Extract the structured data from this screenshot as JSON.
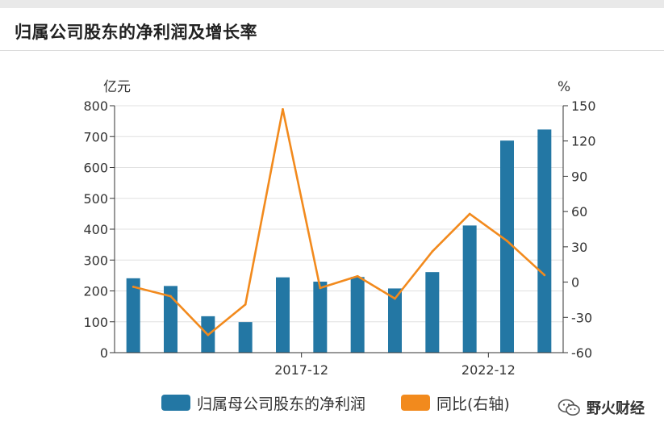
{
  "title": "归属公司股东的净利润及增长率",
  "watermark": "野火财经",
  "colors": {
    "bar": "#2377a4",
    "line": "#f28a1d",
    "axis": "#333333",
    "grid": "#e0e0e0"
  },
  "chart_data": {
    "type": "bar",
    "title": "归属公司股东的净利润及增长率",
    "left_axis_unit": "亿元",
    "right_axis_unit": "%",
    "left_ylim": [
      0,
      800
    ],
    "left_ticks": [
      0,
      100,
      200,
      300,
      400,
      500,
      600,
      700,
      800
    ],
    "right_ylim": [
      -60,
      150
    ],
    "right_ticks": [
      -60,
      -30,
      0,
      30,
      60,
      90,
      120,
      150
    ],
    "x_tick_labels": [
      {
        "label": "2017-12",
        "after_index": 4
      },
      {
        "label": "2022-12",
        "after_index": 9
      }
    ],
    "grid": true,
    "legend_position": "bottom",
    "series": [
      {
        "name": "归属母公司股东的净利润",
        "type": "bar",
        "axis": "left",
        "values": [
          241,
          216,
          118,
          99,
          244,
          230,
          245,
          208,
          261,
          412,
          687,
          723
        ]
      },
      {
        "name": "同比(右轴)",
        "type": "line",
        "axis": "right",
        "values": [
          -4,
          -12,
          -45,
          -19,
          147,
          -5,
          5,
          -14,
          26,
          58,
          35,
          6
        ]
      }
    ]
  }
}
